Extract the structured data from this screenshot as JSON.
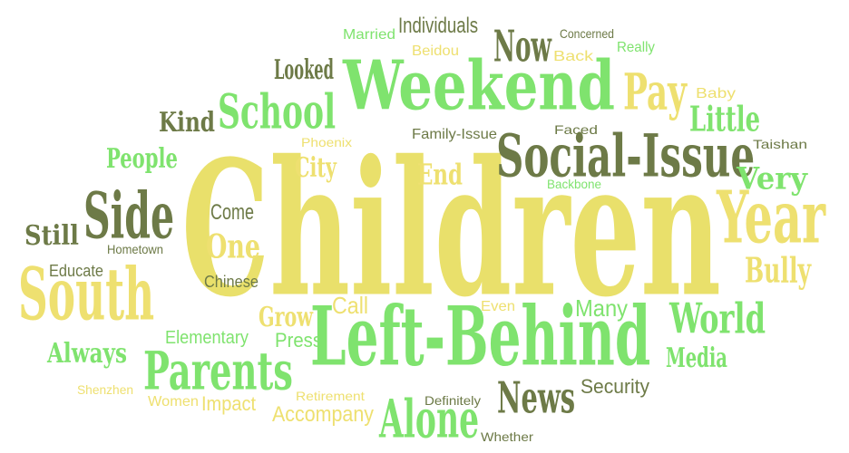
{
  "colors": {
    "green": "#7CE46C",
    "yellow": "#EEE070",
    "olive": "#6D7A47",
    "light_yellow": "#F2E98E"
  },
  "words": [
    {
      "text": "Children",
      "color": "#E9E06B"
    },
    {
      "text": "Weekend",
      "color": "#7FE36E"
    },
    {
      "text": "Left-Behind",
      "color": "#7FE36E"
    },
    {
      "text": "Social-Issue",
      "color": "#6D7A47"
    },
    {
      "text": "South",
      "color": "#EEE070"
    },
    {
      "text": "Year",
      "color": "#EEE070"
    },
    {
      "text": "Parents",
      "color": "#7FE36E"
    },
    {
      "text": "Side",
      "color": "#6D7A47"
    },
    {
      "text": "School",
      "color": "#7FE36E"
    },
    {
      "text": "Alone",
      "color": "#7FE36E"
    },
    {
      "text": "News",
      "color": "#6D7A47"
    },
    {
      "text": "Pay",
      "color": "#EEE070"
    },
    {
      "text": "Now",
      "color": "#6D7A47"
    },
    {
      "text": "World",
      "color": "#7FE36E"
    },
    {
      "text": "Little",
      "color": "#7FE36E"
    },
    {
      "text": "Very",
      "color": "#7FE36E"
    },
    {
      "text": "Bully",
      "color": "#EEE070"
    },
    {
      "text": "One",
      "color": "#EEE070"
    },
    {
      "text": "Kind",
      "color": "#6D7A47"
    },
    {
      "text": "People",
      "color": "#7FE36E"
    },
    {
      "text": "Always",
      "color": "#7FE36E"
    },
    {
      "text": "Media",
      "color": "#7FE36E"
    },
    {
      "text": "Still",
      "color": "#6D7A47"
    },
    {
      "text": "Looked",
      "color": "#6D7A47"
    },
    {
      "text": "Individuals",
      "color": "#6D7A47"
    },
    {
      "text": "Grow",
      "color": "#EEE070"
    },
    {
      "text": "City",
      "color": "#EEE070"
    },
    {
      "text": "End",
      "color": "#EEE070"
    },
    {
      "text": "Come",
      "color": "#6D7A47"
    },
    {
      "text": "Many",
      "color": "#7FE36E"
    },
    {
      "text": "Call",
      "color": "#EEE070"
    },
    {
      "text": "Press",
      "color": "#7FE36E"
    },
    {
      "text": "Security",
      "color": "#6D7A47"
    },
    {
      "text": "Accompany",
      "color": "#EEE070"
    },
    {
      "text": "Impact",
      "color": "#EEE070"
    },
    {
      "text": "Elementary",
      "color": "#7FE36E"
    },
    {
      "text": "Educate",
      "color": "#6D7A47"
    },
    {
      "text": "Chinese",
      "color": "#6D7A47"
    },
    {
      "text": "Hometown",
      "color": "#6D7A47"
    },
    {
      "text": "Taishan",
      "color": "#6D7A47"
    },
    {
      "text": "Faced",
      "color": "#6D7A47"
    },
    {
      "text": "Family-Issue",
      "color": "#6D7A47"
    },
    {
      "text": "Phoenix",
      "color": "#EEE070"
    },
    {
      "text": "Backbone",
      "color": "#7FE36E"
    },
    {
      "text": "Baby",
      "color": "#EEE070"
    },
    {
      "text": "Really",
      "color": "#7FE36E"
    },
    {
      "text": "Back",
      "color": "#EEE070"
    },
    {
      "text": "Concerned",
      "color": "#6D7A47"
    },
    {
      "text": "Beidou",
      "color": "#EEE070"
    },
    {
      "text": "Married",
      "color": "#7FE36E"
    },
    {
      "text": "Even",
      "color": "#EEE070"
    },
    {
      "text": "Definitely",
      "color": "#6D7A47"
    },
    {
      "text": "Whether",
      "color": "#6D7A47"
    },
    {
      "text": "Retirement",
      "color": "#EEE070"
    },
    {
      "text": "Women",
      "color": "#EEE070"
    },
    {
      "text": "Shenzhen",
      "color": "#EEE070"
    }
  ]
}
